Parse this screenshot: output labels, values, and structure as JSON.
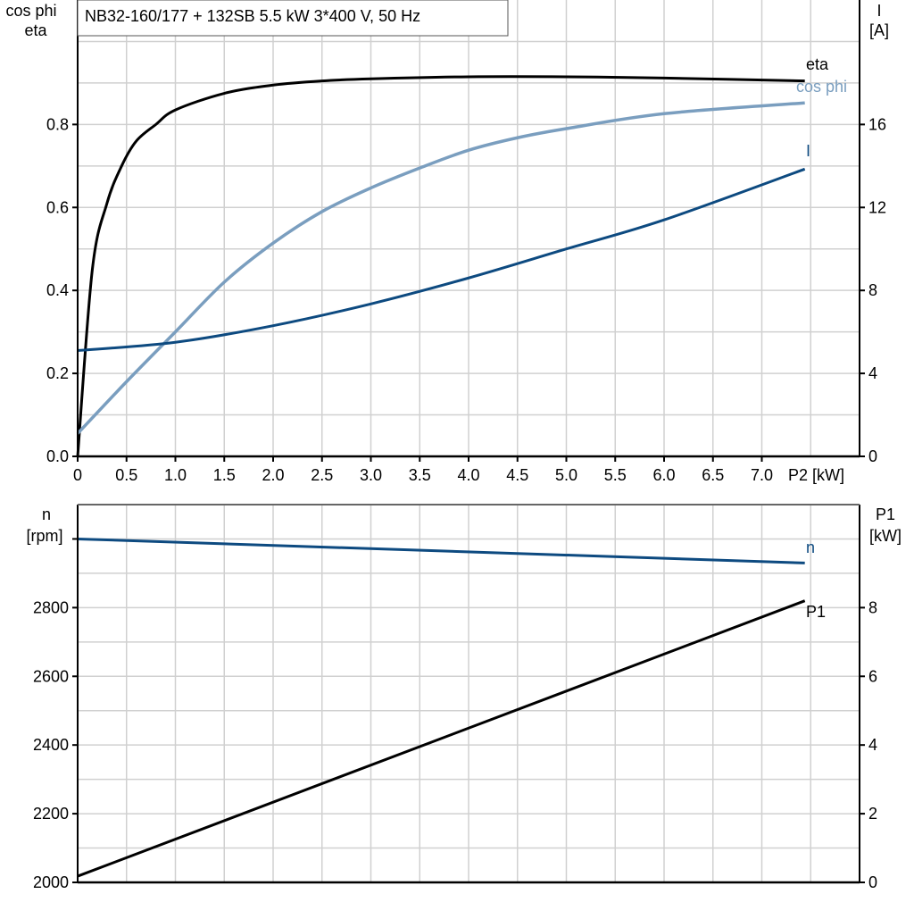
{
  "title": "NB32-160/177 + 132SB   5.5 kW   3*400 V, 50 Hz",
  "colors": {
    "eta": "#000000",
    "cos_phi": "#7a9ebf",
    "I": "#0d4a80",
    "n": "#0d4a80",
    "P1": "#000000",
    "grid": "#d0d0d0"
  },
  "chart_data": [
    {
      "type": "line",
      "x_label": "P2 [kW]",
      "x_ticks": [
        "0",
        "0.5",
        "1.0",
        "1.5",
        "2.0",
        "2.5",
        "3.0",
        "3.5",
        "4.0",
        "4.5",
        "5.0",
        "5.5",
        "6.0",
        "6.5",
        "7.0"
      ],
      "xlim": [
        0,
        8
      ],
      "left_axis": {
        "label_line1": "cos phi",
        "label_line2": "eta",
        "ticks": [
          "0.0",
          "0.2",
          "0.4",
          "0.6",
          "0.8"
        ],
        "ylim": [
          0,
          1.1
        ]
      },
      "right_axis": {
        "label_line1": "I",
        "label_line2": "[A]",
        "ticks": [
          "0",
          "4",
          "8",
          "12",
          "16"
        ],
        "ylim": [
          0,
          22
        ]
      },
      "grid": true,
      "series": [
        {
          "name": "eta",
          "axis": "left",
          "x": [
            0,
            0.15,
            0.3,
            0.45,
            0.6,
            0.8,
            1.0,
            1.5,
            2.0,
            2.5,
            3.0,
            4.0,
            5.0,
            6.0,
            7.44
          ],
          "y": [
            0,
            0.45,
            0.61,
            0.7,
            0.76,
            0.8,
            0.835,
            0.875,
            0.895,
            0.905,
            0.91,
            0.915,
            0.915,
            0.912,
            0.905
          ]
        },
        {
          "name": "cos phi",
          "axis": "left",
          "x": [
            0,
            0.5,
            1.0,
            1.5,
            2.0,
            2.5,
            3.0,
            3.5,
            4.0,
            4.5,
            5.0,
            6.0,
            7.44
          ],
          "y": [
            0.055,
            0.18,
            0.3,
            0.42,
            0.514,
            0.59,
            0.647,
            0.695,
            0.738,
            0.768,
            0.79,
            0.826,
            0.852
          ]
        },
        {
          "name": "I",
          "axis": "right",
          "x": [
            0,
            1.0,
            2.0,
            3.0,
            4.0,
            5.0,
            6.0,
            7.44
          ],
          "y": [
            5.1,
            5.5,
            6.3,
            7.35,
            8.6,
            10.0,
            11.4,
            13.85
          ]
        }
      ]
    },
    {
      "type": "line",
      "xlim": [
        0,
        8
      ],
      "left_axis": {
        "label_line1": "n",
        "label_line2": "[rpm]",
        "ticks": [
          "2000",
          "2200",
          "2400",
          "2600",
          "2800"
        ],
        "ylim": [
          2000,
          3100
        ]
      },
      "right_axis": {
        "label_line1": "P1",
        "label_line2": "[kW]",
        "ticks": [
          "0",
          "2",
          "4",
          "6",
          "8"
        ],
        "ylim": [
          0,
          11
        ]
      },
      "grid": true,
      "series": [
        {
          "name": "n",
          "axis": "left",
          "x": [
            0,
            7.44
          ],
          "y": [
            3000,
            2930
          ]
        },
        {
          "name": "P1",
          "axis": "right",
          "x": [
            0,
            7.44
          ],
          "y": [
            0.18,
            8.2
          ]
        }
      ]
    }
  ]
}
